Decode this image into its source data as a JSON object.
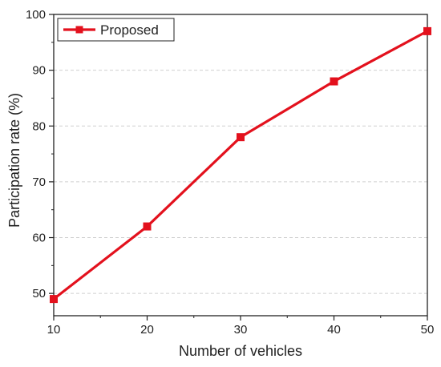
{
  "chart_data": {
    "type": "line",
    "title": "",
    "xlabel": "Number of vehicles",
    "ylabel": "Participation rate (%)",
    "xlim": [
      10,
      50
    ],
    "ylim": [
      46,
      100
    ],
    "xticks": [
      10,
      20,
      30,
      40,
      50
    ],
    "yticks": [
      50,
      60,
      70,
      80,
      90,
      100
    ],
    "grid": "horizontal dashed",
    "legend_position": "top-left",
    "series": [
      {
        "name": "Proposed",
        "color": "#e3111d",
        "marker": "square",
        "x": [
          10,
          20,
          30,
          40,
          50
        ],
        "y": [
          49,
          62,
          78,
          88,
          97
        ]
      }
    ]
  }
}
